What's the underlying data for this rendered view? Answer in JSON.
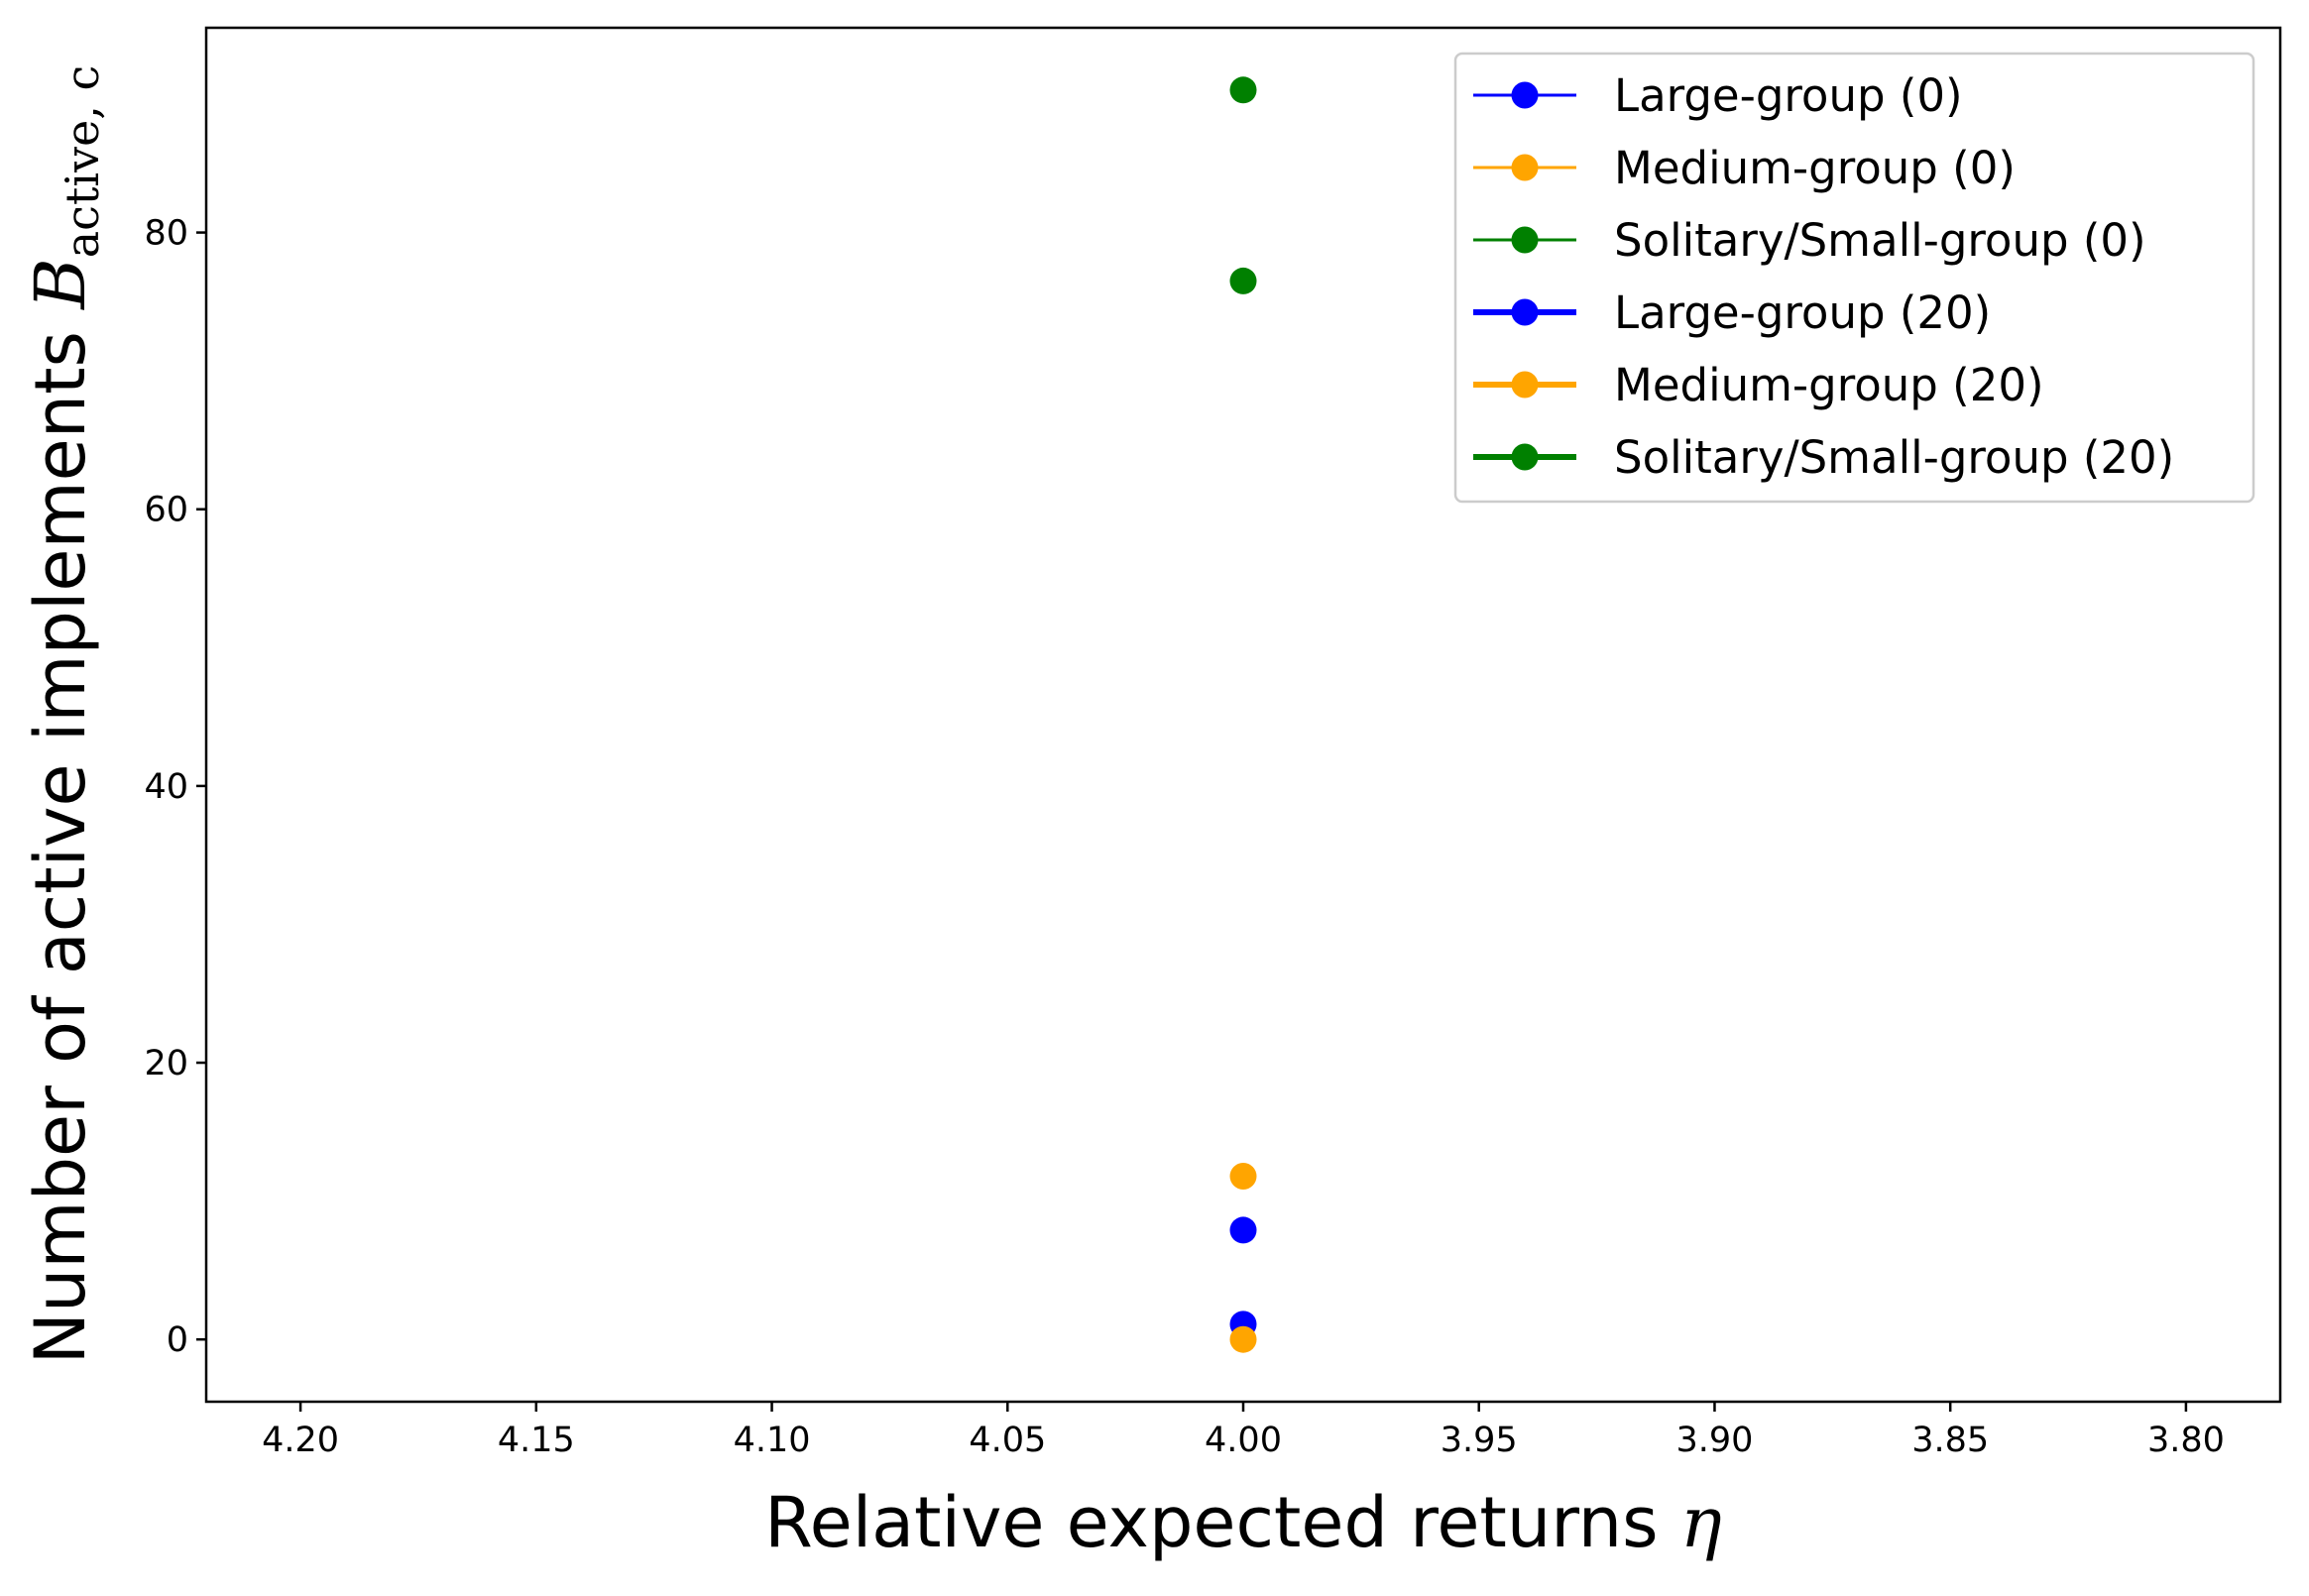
{
  "chart_data": {
    "type": "scatter",
    "xlabel": {
      "text": "Relative expected returns ",
      "symbol": "η"
    },
    "ylabel": {
      "text": "Number of active implements ",
      "symbol": "B",
      "subscript": "active, c"
    },
    "xlim": [
      4.22,
      3.78
    ],
    "ylim": [
      -4.5,
      94.8
    ],
    "x_inverted": true,
    "xticks": [
      {
        "value": 4.2,
        "label": "4.20"
      },
      {
        "value": 4.15,
        "label": "4.15"
      },
      {
        "value": 4.1,
        "label": "4.10"
      },
      {
        "value": 4.05,
        "label": "4.05"
      },
      {
        "value": 4.0,
        "label": "4.00"
      },
      {
        "value": 3.95,
        "label": "3.95"
      },
      {
        "value": 3.9,
        "label": "3.90"
      },
      {
        "value": 3.85,
        "label": "3.85"
      },
      {
        "value": 3.8,
        "label": "3.80"
      }
    ],
    "yticks": [
      {
        "value": 0,
        "label": "0"
      },
      {
        "value": 20,
        "label": "20"
      },
      {
        "value": 40,
        "label": "40"
      },
      {
        "value": 60,
        "label": "60"
      },
      {
        "value": 80,
        "label": "80"
      }
    ],
    "grid": false,
    "legend_position": "top-right",
    "series": [
      {
        "name": "Large-group (0)",
        "color": "#0000ff",
        "line_weight": "thin",
        "points": [
          {
            "x": 4.0,
            "y": 1.1
          }
        ]
      },
      {
        "name": "Medium-group (0)",
        "color": "#ffa500",
        "line_weight": "thin",
        "points": [
          {
            "x": 4.0,
            "y": 0.0
          }
        ]
      },
      {
        "name": "Solitary/Small-group (0)",
        "color": "#008000",
        "line_weight": "thin",
        "points": [
          {
            "x": 4.0,
            "y": 90.3
          }
        ]
      },
      {
        "name": "Large-group (20)",
        "color": "#0000ff",
        "line_weight": "thick",
        "points": [
          {
            "x": 4.0,
            "y": 7.9
          }
        ]
      },
      {
        "name": "Medium-group (20)",
        "color": "#ffa500",
        "line_weight": "thick",
        "points": [
          {
            "x": 4.0,
            "y": 11.8
          }
        ]
      },
      {
        "name": "Solitary/Small-group (20)",
        "color": "#008000",
        "line_weight": "thick",
        "points": [
          {
            "x": 4.0,
            "y": 76.5
          }
        ]
      }
    ]
  }
}
